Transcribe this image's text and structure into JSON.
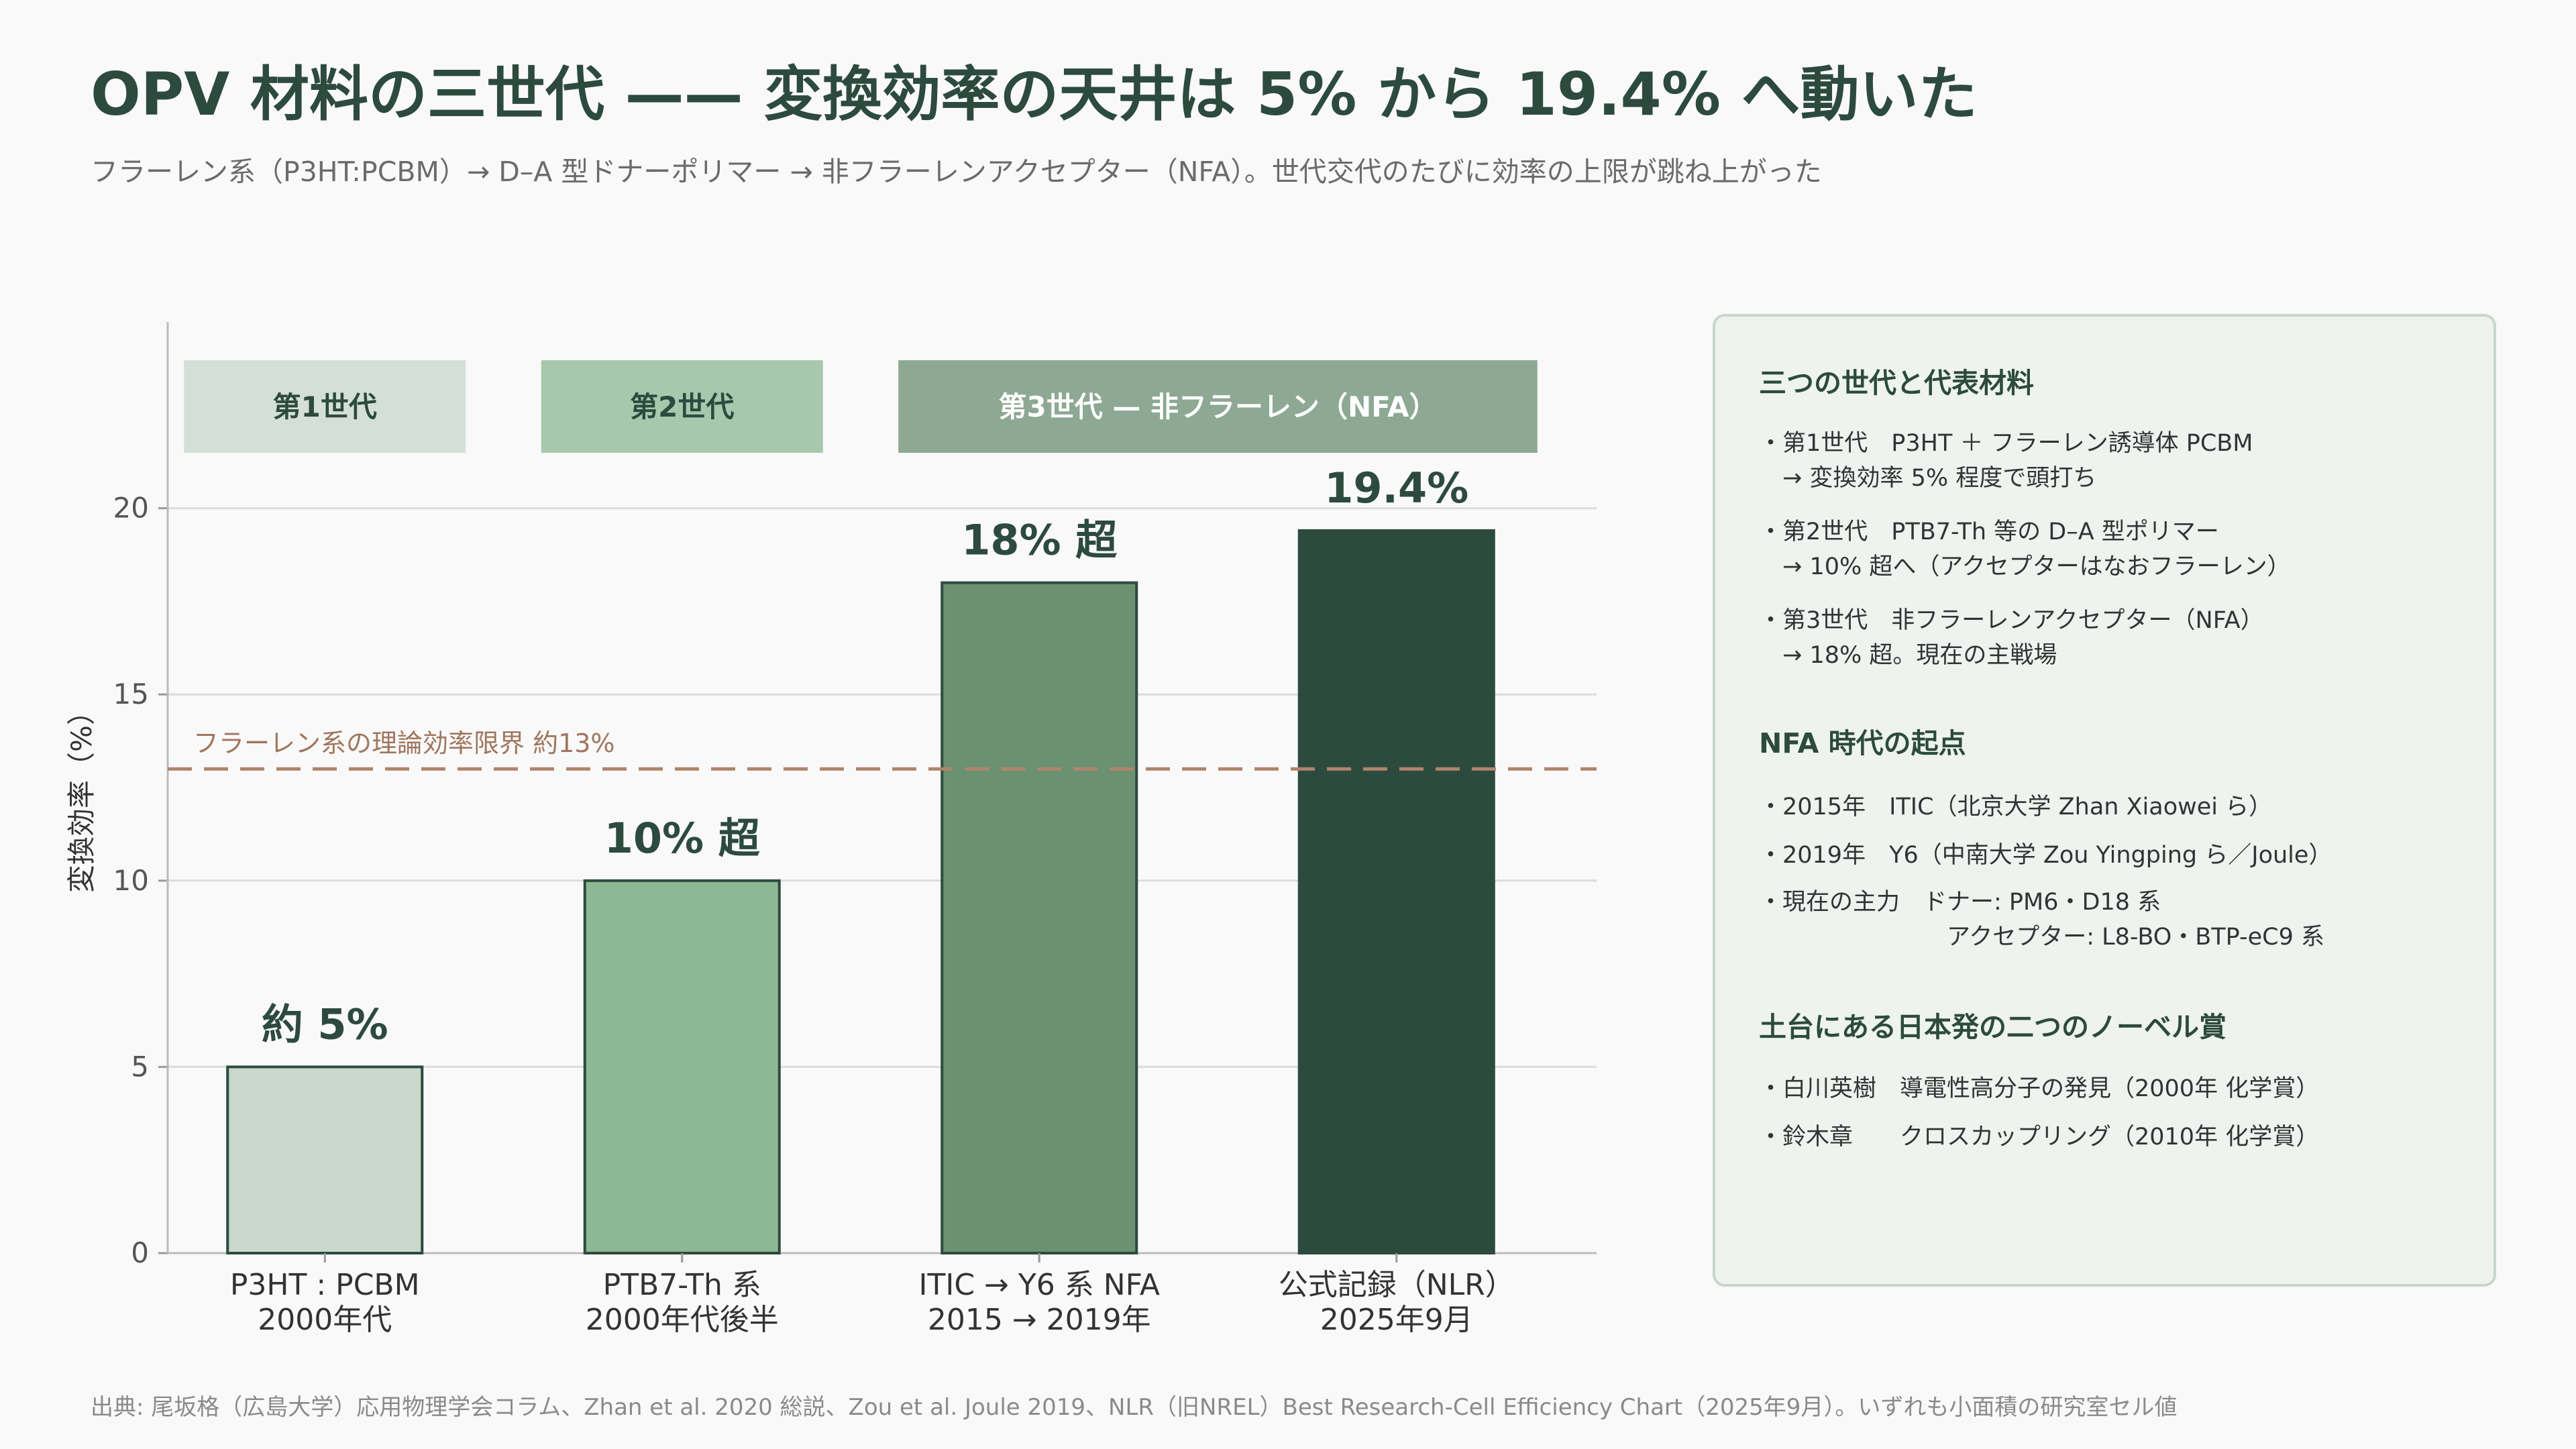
{
  "title": "OPV 材料の三世代 —— 変換効率の天井は 5% から 19.4% へ動いた",
  "subtitle": "フラーレン系（P3HT:PCBM）→ D–A 型ドナーポリマー → 非フラーレンアクセプター（NFA）。世代交代のたびに効率の上限が跳ね上がった",
  "colors": {
    "title": "#2d4a3e",
    "bar_gen1": "#c8d9cc",
    "bar_gen2": "#8db896",
    "bar_gen3a": "#6a9171",
    "bar_gen3b": "#2d4a3e",
    "bar_outline": "#2d4a3e",
    "band_gen1": "#d4e0d7",
    "band_gen2": "#a8c8ae",
    "band_gen3": "#8da893",
    "limit_line": "#b0846b"
  },
  "chart_data": {
    "type": "bar",
    "ylabel": "変換効率（%）",
    "xlabel": "",
    "ylim": [
      0,
      25
    ],
    "yticks": [
      0,
      5,
      10,
      15,
      20
    ],
    "grid": "horizontal",
    "categories": [
      [
        "P3HT : PCBM",
        "2000年代"
      ],
      [
        "PTB7-Th 系",
        "2000年代後半"
      ],
      [
        "ITIC → Y6 系 NFA",
        "2015 → 2019年"
      ],
      [
        "公式記録（NLR）",
        "2025年9月"
      ]
    ],
    "values": [
      5,
      10,
      18,
      19.4
    ],
    "value_labels": [
      "約 5%",
      "10% 超",
      "18% 超",
      "19.4%"
    ],
    "reference_line": {
      "value": 13,
      "label": "フラーレン系の理論効率限界 約13%"
    },
    "generation_bands": [
      {
        "label": "第1世代",
        "from_index": 0,
        "to_index": 0
      },
      {
        "label": "第2世代",
        "from_index": 1,
        "to_index": 1
      },
      {
        "label": "第3世代 — 非フラーレン（NFA）",
        "from_index": 2,
        "to_index": 3
      }
    ]
  },
  "side_panel": {
    "sections": [
      {
        "title": "三つの世代と代表材料",
        "lines": [
          "・第1世代　P3HT ＋ フラーレン誘導体 PCBM",
          "　→ 変換効率 5% 程度で頭打ち",
          "・第2世代　PTB7-Th 等の D–A 型ポリマー",
          "　→ 10% 超へ（アクセプターはなおフラーレン）",
          "・第3世代　非フラーレンアクセプター（NFA）",
          "　→ 18% 超。現在の主戦場"
        ]
      },
      {
        "title": "NFA 時代の起点",
        "lines": [
          "・2015年　ITIC（北京大学 Zhan Xiaowei ら）",
          "・2019年　Y6（中南大学 Zou Yingping ら／Joule）",
          "・現在の主力　ドナー: PM6・D18 系",
          "　　　　　　　　アクセプター: L8-BO・BTP-eC9 系"
        ]
      },
      {
        "title": "土台にある日本発の二つのノーベル賞",
        "lines": [
          "・白川英樹　導電性高分子の発見（2000年 化学賞）",
          "・鈴木章　　クロスカップリング（2010年 化学賞）"
        ]
      }
    ]
  },
  "source": "出典: 尾坂格（広島大学）応用物理学会コラム、Zhan et al. 2020 総説、Zou et al. Joule 2019、NLR（旧NREL）Best Research-Cell Efficiency Chart（2025年9月）。いずれも小面積の研究室セル値"
}
